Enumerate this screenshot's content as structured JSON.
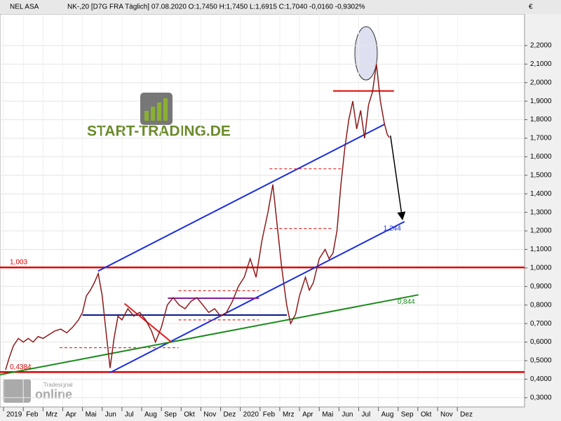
{
  "chart_data": {
    "type": "line",
    "title": "NEL ASA",
    "subtitle": "NK-,20 [D7G FRA Täglich] 07.08.2020 O:1,7450 H:1,7450 L:1,6915 C:1,7040 -0,0160 -0,9302%",
    "currency": "€",
    "watermark": "START-TRADING.DE",
    "logo": "online",
    "logo_sub": "Tradesignal",
    "xlim": [
      -0.18,
      26.3
    ],
    "ylim": [
      0.25,
      2.37
    ],
    "grid": true,
    "xticks": [
      {
        "value": 0,
        "label": "2019"
      },
      {
        "value": 1,
        "label": "Feb"
      },
      {
        "value": 2,
        "label": "Mrz"
      },
      {
        "value": 3,
        "label": "Apr"
      },
      {
        "value": 4,
        "label": "Mai"
      },
      {
        "value": 5,
        "label": "Jun"
      },
      {
        "value": 6,
        "label": "Jul"
      },
      {
        "value": 7,
        "label": "Aug"
      },
      {
        "value": 8,
        "label": "Sep"
      },
      {
        "value": 9,
        "label": "Okt"
      },
      {
        "value": 10,
        "label": "Nov"
      },
      {
        "value": 11,
        "label": "Dez"
      },
      {
        "value": 12,
        "label": "2020"
      },
      {
        "value": 13,
        "label": "Feb"
      },
      {
        "value": 14,
        "label": "Mrz"
      },
      {
        "value": 15,
        "label": "Apr"
      },
      {
        "value": 16,
        "label": "Mai"
      },
      {
        "value": 17,
        "label": "Jun"
      },
      {
        "value": 18,
        "label": "Jul"
      },
      {
        "value": 19,
        "label": "Aug"
      },
      {
        "value": 20,
        "label": "Sep"
      },
      {
        "value": 21,
        "label": "Okt"
      },
      {
        "value": 22,
        "label": "Nov"
      },
      {
        "value": 23,
        "label": "Dez"
      }
    ],
    "yticks": [
      {
        "value": 0.3,
        "label": "0,3000"
      },
      {
        "value": 0.4,
        "label": "0,4000"
      },
      {
        "value": 0.5,
        "label": "0,5000"
      },
      {
        "value": 0.6,
        "label": "0,6000"
      },
      {
        "value": 0.7,
        "label": "0,7000"
      },
      {
        "value": 0.8,
        "label": "0,8000"
      },
      {
        "value": 0.9,
        "label": "0,9000"
      },
      {
        "value": 1.0,
        "label": "1,0000"
      },
      {
        "value": 1.1,
        "label": "1,1000"
      },
      {
        "value": 1.2,
        "label": "1,2000"
      },
      {
        "value": 1.3,
        "label": "1,3000"
      },
      {
        "value": 1.4,
        "label": "1,4000"
      },
      {
        "value": 1.5,
        "label": "1,5000"
      },
      {
        "value": 1.6,
        "label": "1,6000"
      },
      {
        "value": 1.7,
        "label": "1,7000"
      },
      {
        "value": 1.8,
        "label": "1,8000"
      },
      {
        "value": 1.9,
        "label": "1,9000"
      },
      {
        "value": 2.0,
        "label": "2,0000"
      },
      {
        "value": 2.1,
        "label": "2,1000"
      },
      {
        "value": 2.2,
        "label": "2,2000"
      }
    ],
    "series": [
      {
        "name": "NEL ASA",
        "color": "#8b1a1a",
        "x": [
          0.1,
          0.3,
          0.5,
          0.75,
          1.0,
          1.25,
          1.5,
          1.75,
          2.0,
          2.3,
          2.6,
          2.9,
          3.2,
          3.5,
          3.8,
          4.0,
          4.2,
          4.4,
          4.6,
          4.8,
          5.0,
          5.2,
          5.4,
          5.6,
          5.8,
          6.0,
          6.3,
          6.6,
          6.9,
          7.2,
          7.5,
          7.7,
          8.0,
          8.3,
          8.6,
          8.9,
          9.2,
          9.5,
          9.8,
          10.1,
          10.4,
          10.7,
          11.0,
          11.3,
          11.6,
          11.9,
          12.2,
          12.5,
          12.8,
          13.1,
          13.4,
          13.65,
          13.9,
          14.1,
          14.35,
          14.55,
          14.8,
          15.0,
          15.3,
          15.5,
          15.7,
          16.0,
          16.3,
          16.5,
          16.7,
          16.9,
          17.1,
          17.3,
          17.5,
          17.7,
          17.9,
          18.1,
          18.3,
          18.5,
          18.7,
          18.9,
          19.1,
          19.3,
          19.45,
          19.55
        ],
        "values": [
          0.45,
          0.52,
          0.58,
          0.62,
          0.6,
          0.62,
          0.6,
          0.63,
          0.62,
          0.64,
          0.66,
          0.67,
          0.65,
          0.68,
          0.72,
          0.76,
          0.85,
          0.88,
          0.92,
          0.97,
          0.85,
          0.65,
          0.46,
          0.62,
          0.74,
          0.72,
          0.78,
          0.74,
          0.76,
          0.72,
          0.66,
          0.6,
          0.68,
          0.8,
          0.84,
          0.8,
          0.78,
          0.82,
          0.84,
          0.8,
          0.76,
          0.78,
          0.74,
          0.76,
          0.82,
          0.9,
          0.95,
          1.05,
          0.95,
          1.15,
          1.3,
          1.45,
          1.2,
          1.0,
          0.8,
          0.7,
          0.75,
          0.85,
          0.95,
          0.88,
          0.92,
          1.05,
          1.1,
          1.05,
          1.08,
          1.2,
          1.45,
          1.65,
          1.8,
          1.9,
          1.75,
          1.85,
          1.7,
          1.88,
          1.95,
          2.1,
          1.9,
          1.78,
          1.72,
          1.704
        ]
      }
    ],
    "hlines": [
      {
        "value": 1.003,
        "label": "1,003",
        "color": "#e00000"
      },
      {
        "value": 0.4384,
        "label": "0,4384",
        "color": "#e00000"
      }
    ],
    "lines": [
      {
        "color": "#1a2ee0",
        "x": [
          4.79,
          19.33
        ],
        "y": [
          0.983,
          1.776
        ]
      },
      {
        "color": "#1a2ee0",
        "x": [
          5.39,
          20.32
        ],
        "y": [
          0.435,
          1.25
        ],
        "label": "1,244"
      },
      {
        "color": "#1a8a1a",
        "x": [
          -0.18,
          21.03
        ],
        "y": [
          0.424,
          0.855
        ],
        "label": "0,844"
      },
      {
        "color": "#0a1a8a",
        "x": [
          4.0,
          14.36
        ],
        "y": [
          0.746,
          0.746
        ]
      },
      {
        "color": "#8a1a9a",
        "x": [
          8.33,
          12.94
        ],
        "y": [
          0.837,
          0.837
        ]
      },
      {
        "color": "#e02020",
        "x": [
          6.13,
          8.51
        ],
        "y": [
          0.808,
          0.6
        ]
      },
      {
        "color": "#e00000",
        "x": [
          16.7,
          19.79
        ],
        "y": [
          1.955,
          1.955
        ]
      },
      {
        "color": "#e03030",
        "dash": true,
        "x": [
          2.84,
          8.87
        ],
        "y": [
          0.57,
          0.57
        ]
      },
      {
        "color": "#e03030",
        "dash": true,
        "x": [
          8.87,
          12.94
        ],
        "y": [
          0.877,
          0.877
        ]
      },
      {
        "color": "#e03030",
        "dash": true,
        "x": [
          8.87,
          12.94
        ],
        "y": [
          0.72,
          0.72
        ]
      },
      {
        "color": "#e03030",
        "dash": true,
        "x": [
          13.48,
          17.2
        ],
        "y": [
          1.535,
          1.535
        ]
      },
      {
        "color": "#e03030",
        "dash": true,
        "x": [
          13.48,
          16.67
        ],
        "y": [
          1.213,
          1.213
        ]
      },
      {
        "color": "#000000",
        "arrow": true,
        "x": [
          19.61,
          20.21
        ],
        "y": [
          1.714,
          1.268
        ]
      }
    ]
  }
}
